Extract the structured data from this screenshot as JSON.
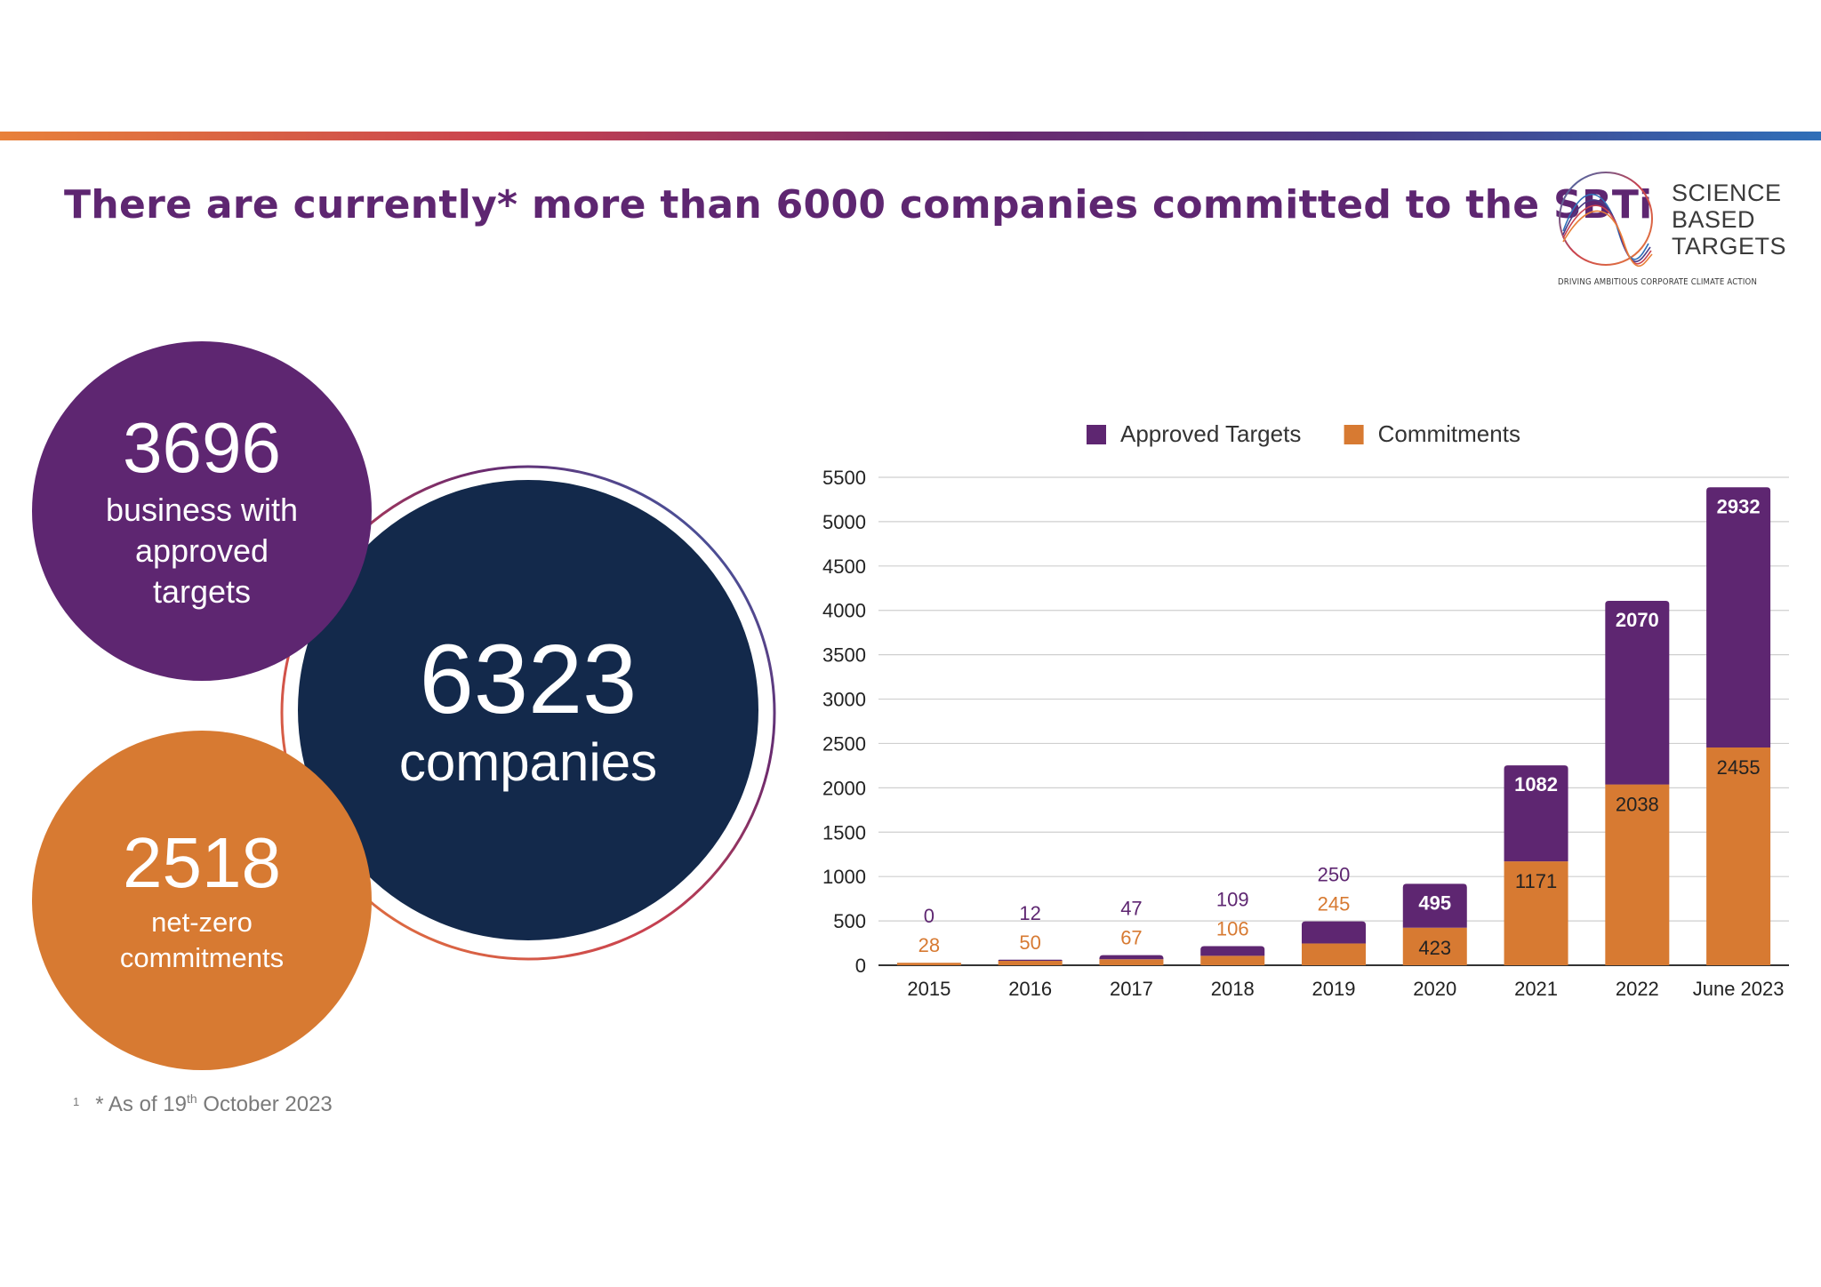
{
  "headline": "There are currently* more than 6000 companies committed to the SBTi",
  "logo": {
    "lines": [
      "SCIENCE",
      "BASED",
      "TARGETS"
    ],
    "tagline": "DRIVING AMBITIOUS CORPORATE CLIMATE ACTION"
  },
  "stats": {
    "approved": {
      "number": "3696",
      "label": "business with approved targets",
      "color": "#5e2671"
    },
    "total": {
      "number": "6323",
      "label": "companies",
      "color": "#13294b"
    },
    "net_zero": {
      "number": "2518",
      "label": "net-zero commitments",
      "color": "#d77a32"
    }
  },
  "footnote": {
    "marker": "1",
    "prefix": "* As of 19",
    "sup": "th",
    "suffix": " October 2023"
  },
  "chart_data": {
    "type": "bar",
    "stacked": true,
    "categories": [
      "2015",
      "2016",
      "2017",
      "2018",
      "2019",
      "2020",
      "2021",
      "2022",
      "June 2023"
    ],
    "series": [
      {
        "name": "Commitments",
        "color": "#d77a32",
        "values": [
          28,
          50,
          67,
          106,
          245,
          423,
          1171,
          2038,
          2455
        ]
      },
      {
        "name": "Approved Targets",
        "color": "#5e2671",
        "values": [
          0,
          12,
          47,
          109,
          250,
          495,
          1082,
          2070,
          2932
        ]
      }
    ],
    "legend_order": [
      "Approved Targets",
      "Commitments"
    ],
    "legend_position": "top",
    "ylim": [
      0,
      5500
    ],
    "yticks": [
      0,
      500,
      1000,
      1500,
      2000,
      2500,
      3000,
      3500,
      4000,
      4500,
      5000,
      5500
    ],
    "grid": true,
    "title": "",
    "xlabel": "",
    "ylabel": ""
  }
}
